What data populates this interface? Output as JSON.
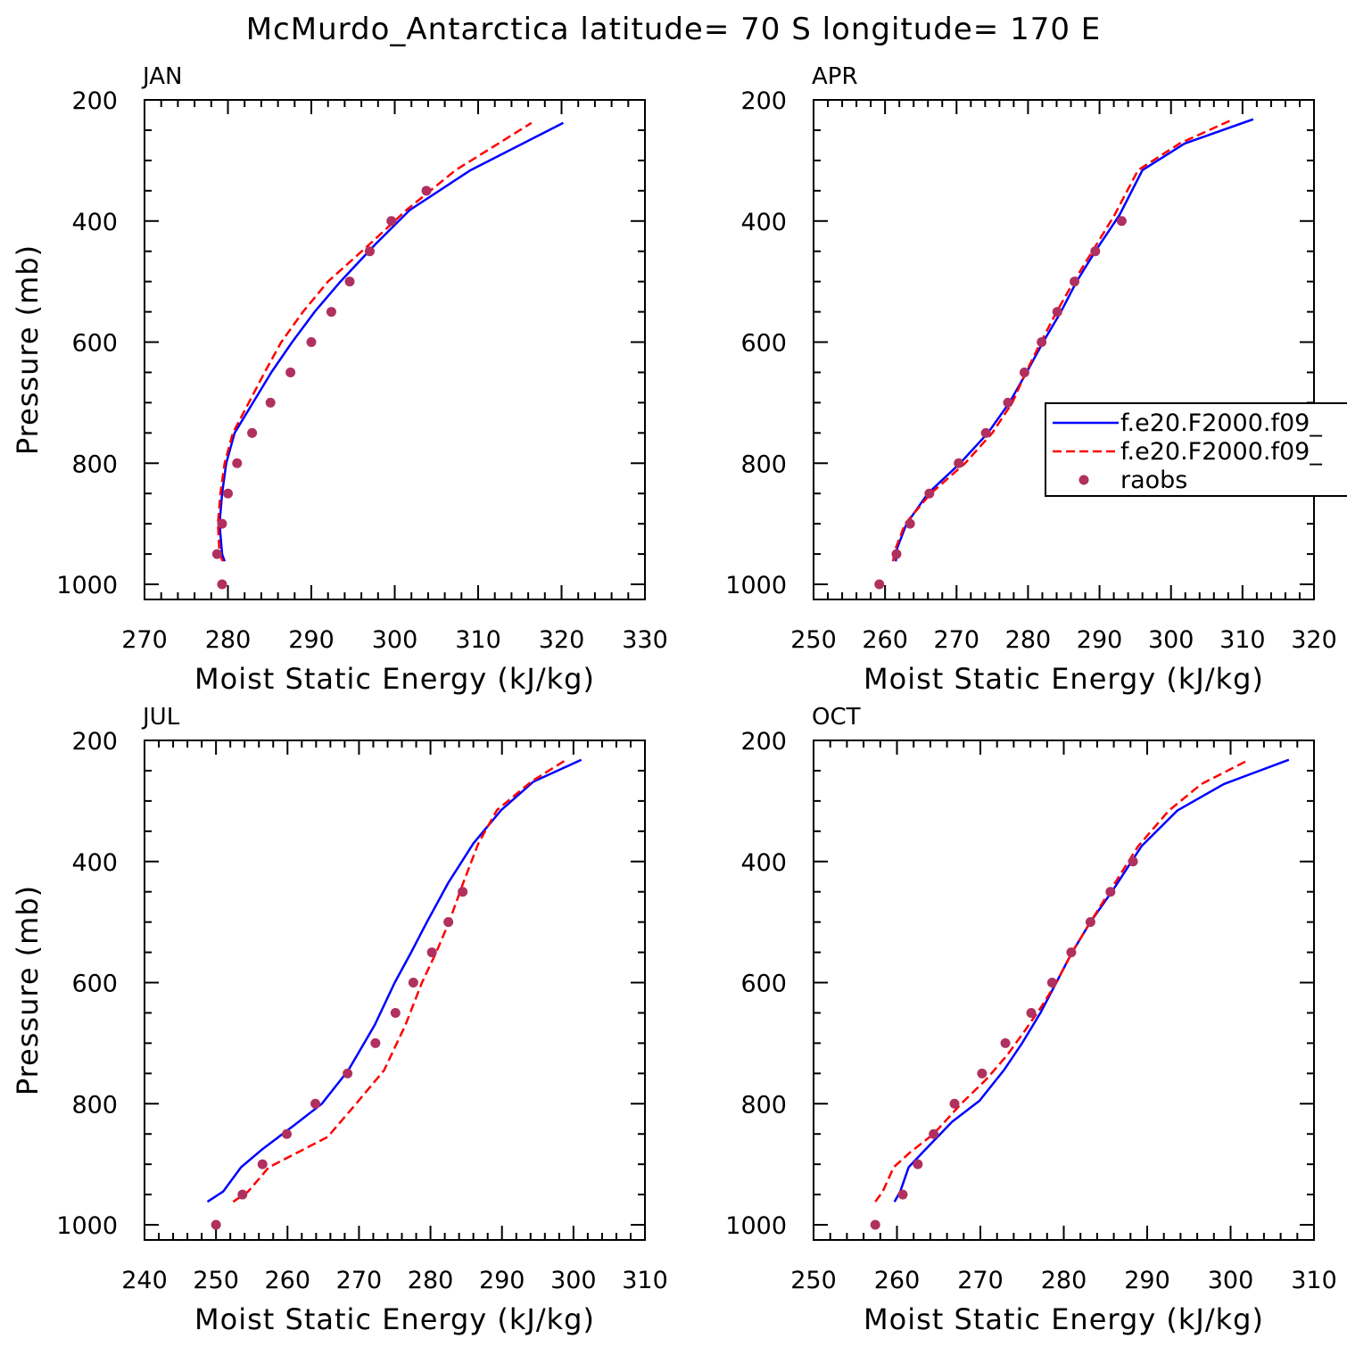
{
  "figure": {
    "title": "McMurdo_Antarctica  latitude= 70 S longitude= 170 E"
  },
  "legend": {
    "panel": "APR",
    "entries": [
      {
        "label": "f.e20.F2000.f09_",
        "style": "solid",
        "color": "#0000ff"
      },
      {
        "label": "f.e20.F2000.f09_",
        "style": "dashed",
        "color": "#ff0000"
      },
      {
        "label": "raobs",
        "style": "marker",
        "color": "#b03060"
      }
    ]
  },
  "colors": {
    "model_solid": "#0000ff",
    "model_dashed": "#ff0000",
    "raobs": "#b03060"
  },
  "chart_data": [
    {
      "type": "line",
      "title": "JAN",
      "xlabel": "Moist Static Energy (kJ/kg)",
      "ylabel": "Pressure (mb)",
      "xlim": [
        270,
        330
      ],
      "ylim": [
        1025,
        200
      ],
      "y_reversed": true,
      "x_ticks": [
        "270",
        "280",
        "290",
        "300",
        "310",
        "320",
        "330"
      ],
      "y_ticks": [
        "200",
        "400",
        "600",
        "800",
        "1000"
      ],
      "series": [
        {
          "style": "solid",
          "color": "#0000ff",
          "x": [
            279.6,
            279.3,
            279.0,
            279.3,
            279.8,
            280.8,
            283.0,
            285.2,
            287.7,
            290.4,
            293.5,
            297.7,
            301.8,
            309.1,
            320.2
          ],
          "y": [
            962,
            950,
            900,
            850,
            800,
            750,
            700,
            650,
            600,
            550,
            500,
            438,
            382,
            316,
            238
          ]
        },
        {
          "style": "dashed",
          "color": "#ff0000",
          "x": [
            279.4,
            279.0,
            278.8,
            279.1,
            279.6,
            280.6,
            282.5,
            284.4,
            286.4,
            289.0,
            292.0,
            297.0,
            301.4,
            307.3,
            316.4
          ],
          "y": [
            962,
            950,
            900,
            850,
            800,
            750,
            700,
            650,
            600,
            550,
            500,
            438,
            382,
            316,
            238
          ]
        },
        {
          "style": "marker",
          "color": "#b03060",
          "x": [
            279.3,
            278.7,
            279.3,
            280.0,
            281.1,
            282.9,
            285.1,
            287.5,
            290.0,
            292.4,
            294.6,
            297.0,
            299.6,
            303.8
          ],
          "y": [
            1000,
            950,
            900,
            850,
            800,
            750,
            700,
            650,
            600,
            550,
            500,
            450,
            400,
            350
          ]
        }
      ]
    },
    {
      "type": "line",
      "title": "APR",
      "xlabel": "Moist Static Energy (kJ/kg)",
      "ylabel": "",
      "xlim": [
        250,
        320
      ],
      "ylim": [
        1025,
        200
      ],
      "y_reversed": true,
      "x_ticks": [
        "250",
        "260",
        "270",
        "280",
        "290",
        "300",
        "310",
        "320"
      ],
      "y_ticks": [
        "200",
        "400",
        "600",
        "800",
        "1000"
      ],
      "series": [
        {
          "style": "solid",
          "color": "#0000ff",
          "x": [
            261.5,
            261.7,
            263.0,
            266.0,
            270.5,
            274.4,
            277.4,
            279.8,
            282.1,
            284.6,
            286.8,
            289.4,
            292.8,
            296.0,
            301.9,
            311.5
          ],
          "y": [
            962,
            940,
            900,
            850,
            800,
            750,
            700,
            650,
            600,
            550,
            500,
            450,
            390,
            316,
            272,
            232
          ]
        },
        {
          "style": "dashed",
          "color": "#ff0000",
          "x": [
            261.1,
            261.5,
            262.8,
            266.4,
            271.2,
            275.0,
            277.8,
            279.7,
            281.8,
            284.0,
            286.4,
            289.0,
            292.1,
            295.4,
            301.2,
            308.7
          ],
          "y": [
            962,
            940,
            900,
            850,
            800,
            750,
            700,
            650,
            600,
            550,
            500,
            450,
            390,
            316,
            272,
            232
          ]
        },
        {
          "style": "marker",
          "color": "#b03060",
          "x": [
            259.2,
            261.6,
            263.5,
            266.2,
            270.3,
            274.1,
            277.2,
            279.5,
            281.9,
            284.1,
            286.5,
            289.4,
            293.1
          ],
          "y": [
            1000,
            950,
            900,
            850,
            800,
            750,
            700,
            650,
            600,
            550,
            500,
            450,
            400
          ]
        }
      ]
    },
    {
      "type": "line",
      "title": "JUL",
      "xlabel": "Moist Static Energy (kJ/kg)",
      "ylabel": "Pressure (mb)",
      "xlim": [
        240,
        310
      ],
      "ylim": [
        1025,
        200
      ],
      "y_reversed": true,
      "x_ticks": [
        "240",
        "250",
        "260",
        "270",
        "280",
        "290",
        "300",
        "310"
      ],
      "y_ticks": [
        "200",
        "400",
        "600",
        "800",
        "1000"
      ],
      "series": [
        {
          "style": "solid",
          "color": "#0000ff",
          "x": [
            248.8,
            251.0,
            253.5,
            256.5,
            261.0,
            264.8,
            268.5,
            272.2,
            275.0,
            277.3,
            279.5,
            282.5,
            286.0,
            289.9,
            294.4,
            301.1
          ],
          "y": [
            962,
            945,
            905,
            875,
            835,
            800,
            745,
            670,
            600,
            550,
            500,
            435,
            370,
            315,
            268,
            232
          ]
        },
        {
          "style": "dashed",
          "color": "#ff0000",
          "x": [
            252.4,
            254.5,
            257.4,
            261.5,
            265.6,
            269.6,
            273.5,
            276.5,
            278.8,
            280.8,
            282.6,
            284.6,
            286.7,
            289.3,
            294.1,
            299.0
          ],
          "y": [
            962,
            945,
            905,
            880,
            855,
            800,
            745,
            670,
            600,
            550,
            500,
            435,
            370,
            315,
            268,
            232
          ]
        },
        {
          "style": "marker",
          "color": "#b03060",
          "x": [
            250.0,
            253.7,
            256.5,
            259.9,
            263.9,
            268.4,
            272.3,
            275.1,
            277.6,
            280.2,
            282.5,
            284.5
          ],
          "y": [
            1000,
            950,
            900,
            850,
            800,
            750,
            700,
            650,
            600,
            550,
            500,
            450
          ]
        }
      ]
    },
    {
      "type": "line",
      "title": "OCT",
      "xlabel": "Moist Static Energy (kJ/kg)",
      "ylabel": "",
      "xlim": [
        250,
        310
      ],
      "ylim": [
        1025,
        200
      ],
      "y_reversed": true,
      "x_ticks": [
        "250",
        "260",
        "270",
        "280",
        "290",
        "300",
        "310"
      ],
      "y_ticks": [
        "200",
        "400",
        "600",
        "800",
        "1000"
      ],
      "series": [
        {
          "style": "solid",
          "color": "#0000ff",
          "x": [
            259.7,
            260.4,
            261.4,
            263.1,
            266.6,
            269.9,
            272.8,
            275.0,
            277.2,
            279.1,
            281.0,
            283.2,
            286.0,
            289.3,
            293.6,
            299.2,
            307.0
          ],
          "y": [
            962,
            945,
            905,
            880,
            830,
            795,
            745,
            700,
            650,
            600,
            550,
            500,
            445,
            375,
            316,
            272,
            232
          ]
        },
        {
          "style": "dashed",
          "color": "#ff0000",
          "x": [
            257.4,
            258.3,
            259.6,
            261.6,
            264.4,
            267.7,
            270.7,
            273.2,
            275.3,
            277.3,
            279.1,
            281.0,
            283.2,
            285.7,
            288.9,
            292.6,
            296.5,
            302.2
          ],
          "y": [
            962,
            945,
            905,
            880,
            850,
            800,
            760,
            720,
            680,
            640,
            600,
            550,
            500,
            445,
            375,
            316,
            272,
            232
          ]
        },
        {
          "style": "marker",
          "color": "#b03060",
          "x": [
            257.4,
            260.7,
            262.5,
            264.4,
            266.9,
            270.2,
            273.0,
            276.1,
            278.6,
            280.9,
            283.2,
            285.6,
            288.3
          ],
          "y": [
            1000,
            950,
            900,
            850,
            800,
            750,
            700,
            650,
            600,
            550,
            500,
            450,
            400
          ]
        }
      ]
    }
  ]
}
